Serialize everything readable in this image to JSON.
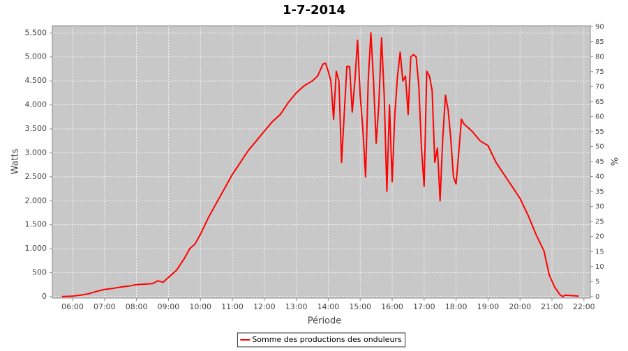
{
  "chart_data": {
    "type": "line",
    "title": "1-7-2014",
    "x_label": "Période",
    "y_label": "Watts",
    "y2_label": "%",
    "x": [
      "05:40",
      "06:00",
      "06:20",
      "06:30",
      "06:45",
      "07:00",
      "07:15",
      "07:30",
      "07:45",
      "08:00",
      "08:15",
      "08:30",
      "08:40",
      "08:50",
      "09:00",
      "09:15",
      "09:30",
      "09:40",
      "09:50",
      "10:00",
      "10:15",
      "10:30",
      "10:45",
      "11:00",
      "11:15",
      "11:30",
      "11:45",
      "12:00",
      "12:15",
      "12:30",
      "12:45",
      "13:00",
      "13:15",
      "13:30",
      "13:40",
      "13:50",
      "13:55",
      "14:00",
      "14:05",
      "14:10",
      "14:15",
      "14:20",
      "14:25",
      "14:30",
      "14:35",
      "14:40",
      "14:45",
      "14:50",
      "14:55",
      "15:00",
      "15:05",
      "15:10",
      "15:15",
      "15:20",
      "15:25",
      "15:30",
      "15:35",
      "15:40",
      "15:45",
      "15:50",
      "15:55",
      "16:00",
      "16:05",
      "16:10",
      "16:15",
      "16:20",
      "16:25",
      "16:30",
      "16:35",
      "16:40",
      "16:45",
      "16:50",
      "16:55",
      "17:00",
      "17:05",
      "17:10",
      "17:15",
      "17:20",
      "17:25",
      "17:30",
      "17:35",
      "17:40",
      "17:45",
      "17:50",
      "17:55",
      "18:00",
      "18:05",
      "18:10",
      "18:15",
      "18:30",
      "18:45",
      "19:00",
      "19:15",
      "19:30",
      "19:45",
      "20:00",
      "20:15",
      "20:30",
      "20:45",
      "20:55",
      "21:05",
      "21:15",
      "21:20",
      "21:25",
      "21:40",
      "21:50"
    ],
    "series": [
      {
        "name": "Somme des productions des onduleurs",
        "color": "#ff0000",
        "values": [
          0,
          10,
          40,
          60,
          110,
          150,
          170,
          200,
          220,
          250,
          260,
          270,
          330,
          300,
          400,
          550,
          800,
          1000,
          1100,
          1300,
          1650,
          1950,
          2250,
          2550,
          2800,
          3050,
          3250,
          3450,
          3650,
          3800,
          4050,
          4250,
          4400,
          4500,
          4600,
          4850,
          4870,
          4700,
          4500,
          3700,
          4700,
          4500,
          2800,
          3800,
          4800,
          4800,
          3850,
          4500,
          5350,
          4200,
          3500,
          2500,
          4500,
          5500,
          4500,
          3200,
          4000,
          5400,
          4200,
          2200,
          4000,
          2400,
          3800,
          4600,
          5100,
          4500,
          4600,
          3800,
          5000,
          5050,
          5000,
          4400,
          3100,
          2300,
          4700,
          4600,
          4300,
          2800,
          3100,
          2000,
          3300,
          4200,
          3900,
          3300,
          2500,
          2350,
          3000,
          3700,
          3600,
          3450,
          3250,
          3150,
          2800,
          2550,
          2300,
          2050,
          1700,
          1300,
          950,
          450,
          200,
          40,
          0,
          30,
          20,
          10
        ]
      }
    ],
    "xlim": [
      "05:22",
      "22:12"
    ],
    "xticks": [
      "06:00",
      "07:00",
      "08:00",
      "09:00",
      "10:00",
      "11:00",
      "12:00",
      "13:00",
      "14:00",
      "15:00",
      "16:00",
      "17:00",
      "18:00",
      "19:00",
      "20:00",
      "21:00",
      "22:00"
    ],
    "ylim": [
      -30,
      5650
    ],
    "yticks": [
      0,
      500,
      {
        "value": 1000,
        "label": "1.000"
      },
      {
        "value": 1500,
        "label": "1.500"
      },
      {
        "value": 2000,
        "label": "2.000"
      },
      {
        "value": 2500,
        "label": "2.500"
      },
      {
        "value": 3000,
        "label": "3.000"
      },
      {
        "value": 3500,
        "label": "3.500"
      },
      {
        "value": 4000,
        "label": "4.000"
      },
      {
        "value": 4500,
        "label": "4.500"
      },
      {
        "value": 5000,
        "label": "5.000"
      },
      {
        "value": 5500,
        "label": "5.500"
      }
    ],
    "y2lim": [
      -0.5,
      90.3
    ],
    "y2ticks": [
      0,
      5,
      10,
      15,
      20,
      25,
      30,
      35,
      40,
      45,
      50,
      55,
      60,
      65,
      70,
      75,
      80,
      85,
      90
    ],
    "grid": true,
    "legend": "bottom"
  }
}
